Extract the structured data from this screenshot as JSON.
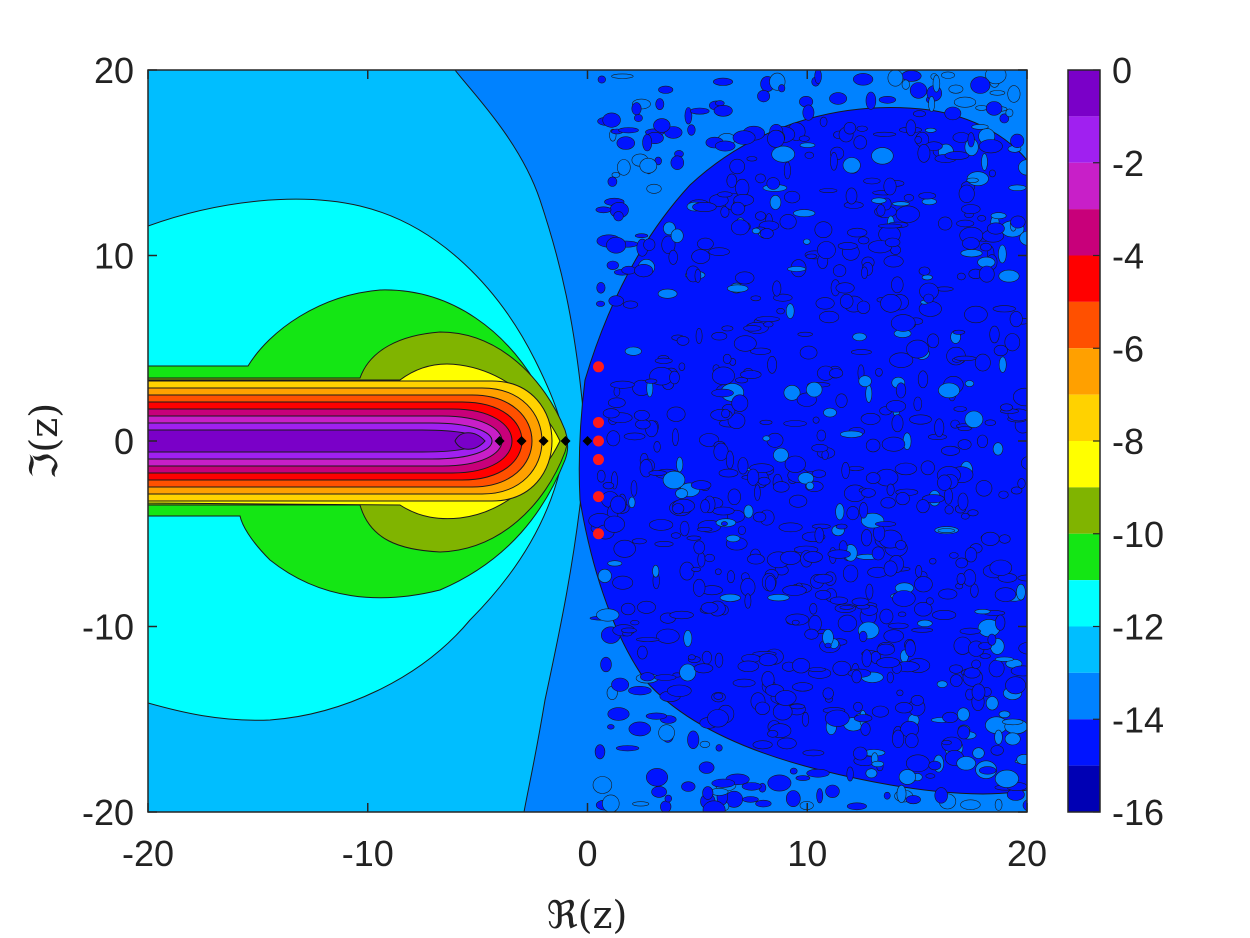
{
  "chart_data": {
    "type": "heatmap",
    "subtype": "filled-contour",
    "title": "",
    "xlabel": "ℜ(z)",
    "ylabel": "ℑ(z)",
    "xlim": [
      -20,
      20
    ],
    "ylim": [
      -20,
      20
    ],
    "x_ticks": [
      "-20",
      "-10",
      "0",
      "10",
      "20"
    ],
    "y_ticks": [
      "20",
      "10",
      "0",
      "-10",
      "-20"
    ],
    "colorbar": {
      "range": [
        -16,
        0
      ],
      "tick_values": [
        0,
        -2,
        -4,
        -6,
        -8,
        -10,
        -12,
        -14,
        -16
      ],
      "tick_labels": [
        "0",
        "-2",
        "-4",
        "-6",
        "-8",
        "-10",
        "-12",
        "-14",
        "-16"
      ],
      "levels": [
        {
          "from": -1,
          "to": 0,
          "color": "#7a00c8"
        },
        {
          "from": -2,
          "to": -1,
          "color": "#a020f0"
        },
        {
          "from": -3,
          "to": -2,
          "color": "#c81fc8"
        },
        {
          "from": -4,
          "to": -3,
          "color": "#c8007a"
        },
        {
          "from": -5,
          "to": -4,
          "color": "#ff0000"
        },
        {
          "from": -6,
          "to": -5,
          "color": "#ff5000"
        },
        {
          "from": -7,
          "to": -6,
          "color": "#ffa000"
        },
        {
          "from": -8,
          "to": -7,
          "color": "#ffd200"
        },
        {
          "from": -9,
          "to": -8,
          "color": "#ffff00"
        },
        {
          "from": -10,
          "to": -9,
          "color": "#80b400"
        },
        {
          "from": -11,
          "to": -10,
          "color": "#14e614"
        },
        {
          "from": -12,
          "to": -11,
          "color": "#00ffff"
        },
        {
          "from": -13,
          "to": -12,
          "color": "#00beff"
        },
        {
          "from": -14,
          "to": -13,
          "color": "#0082ff"
        },
        {
          "from": -15,
          "to": -14,
          "color": "#0014ff"
        },
        {
          "from": -16,
          "to": -15,
          "color": "#0000b4"
        }
      ]
    },
    "grid": false,
    "markers": {
      "red_points": [
        {
          "x": 0.5,
          "y": 4
        },
        {
          "x": 0.5,
          "y": 1
        },
        {
          "x": 0.5,
          "y": 0
        },
        {
          "x": 0.5,
          "y": -1
        },
        {
          "x": 0.5,
          "y": -3
        },
        {
          "x": 0.5,
          "y": -5
        }
      ],
      "red_color": "#ff1a1a",
      "black_points": [
        {
          "x": -4,
          "y": 0
        },
        {
          "x": -3,
          "y": 0
        },
        {
          "x": -2,
          "y": 0
        },
        {
          "x": -1,
          "y": 0
        },
        {
          "x": 0,
          "y": 0
        }
      ],
      "black_color": "#000000"
    }
  }
}
